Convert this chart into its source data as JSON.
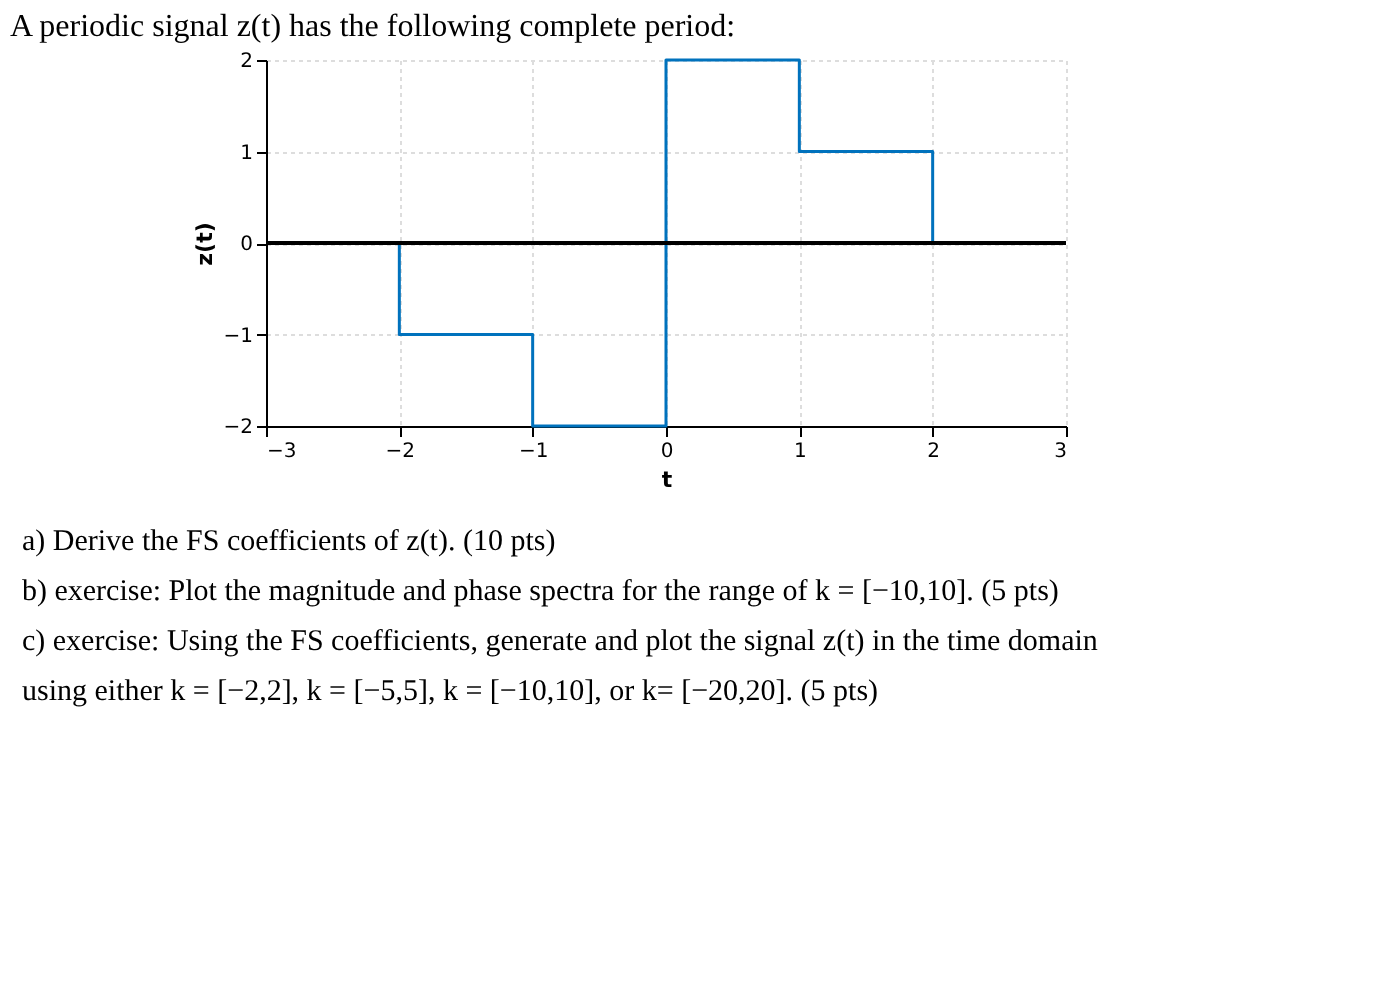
{
  "chart_data": {
    "type": "step",
    "title": "A periodic signal z(t) has the following complete period:",
    "xlabel": "t",
    "ylabel": "z(t)",
    "x": [
      -3,
      -2,
      -1,
      0,
      1,
      2,
      3
    ],
    "series": [
      {
        "color": "#0072bd",
        "values": [
          0,
          -1,
          -2,
          2,
          1,
          0,
          0
        ]
      }
    ],
    "xlim": [
      -3,
      3
    ],
    "ylim": [
      -2,
      2
    ],
    "xticks": [
      -3,
      -2,
      -1,
      0,
      1,
      2,
      3
    ],
    "yticks": [
      -2,
      -1,
      0,
      1,
      2
    ],
    "grid": true,
    "ref_lines": [
      {
        "axis": "y",
        "value": 0,
        "color": "#000000"
      }
    ],
    "annotations": [
      "a) Derive the FS coefficients of z(t). (10 pts)",
      "b) exercise: Plot the magnitude and phase spectra for the range of k = [−10,10]. (5 pts)",
      "c) exercise: Using the FS coefficients, generate and plot the signal z(t) in the time domain using either k = [−2,2], k = [−5,5], k = [−10,10], or k= [−20,20]. (5 pts)"
    ]
  }
}
